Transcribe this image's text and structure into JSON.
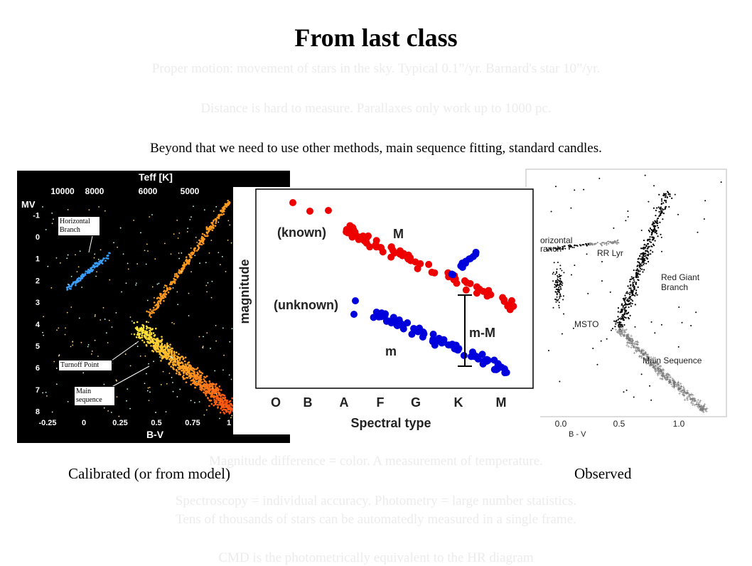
{
  "title": "From last class",
  "faded_lines": [
    "Proper motion: movement of stars in the sky. Typical 0.1”/yr. Barnard's star 10”/yr.",
    "Distance is hard to measure. Parallaxes only work up to 1000 pc.",
    "Magnitude difference = color. A measurement of temperature.",
    "Spectroscopy = individual accuracy. Photometry = large number statistics.",
    "Tens of thousands of stars can be automatedly measured in a single frame.",
    "CMD is the photometrically equivalent to the HR diagram"
  ],
  "highlight": "Beyond that we need to use other methods, main sequence fitting, standard candles.",
  "captions": {
    "left": "Calibrated (or from model)",
    "right": "Observed"
  },
  "hr_figure": {
    "top_axis": "Teff [K]",
    "top_ticks": [
      "10000",
      "8000",
      "6000",
      "5000"
    ],
    "y_axis": "MV",
    "y_ticks": [
      "-1",
      "0",
      "1",
      "2",
      "3",
      "4",
      "5",
      "6",
      "7",
      "8"
    ],
    "x_ticks": [
      "-0.25",
      "0",
      "0.25",
      "0.5",
      "0.75",
      "1"
    ],
    "x_axis": "B-V",
    "labels": [
      "Horizontal Branch",
      "Turnoff Point",
      "Main sequence"
    ]
  },
  "fit_figure": {
    "y_axis": "magnitude",
    "x_axis": "Spectral type",
    "x_ticks": [
      "O",
      "B",
      "A",
      "F",
      "G",
      "K",
      "M"
    ],
    "labels": [
      "(known)",
      "M",
      "(unknown)",
      "m",
      "m-M"
    ]
  },
  "cmd_figure": {
    "labels": [
      "orizontal",
      "ranch",
      "RR Lyr",
      "Red Giant",
      "Branch",
      "MSTO",
      "Main Sequence"
    ],
    "x_ticks": [
      "0.0",
      "0.5",
      "1.0"
    ],
    "x_axis": "B - V"
  }
}
